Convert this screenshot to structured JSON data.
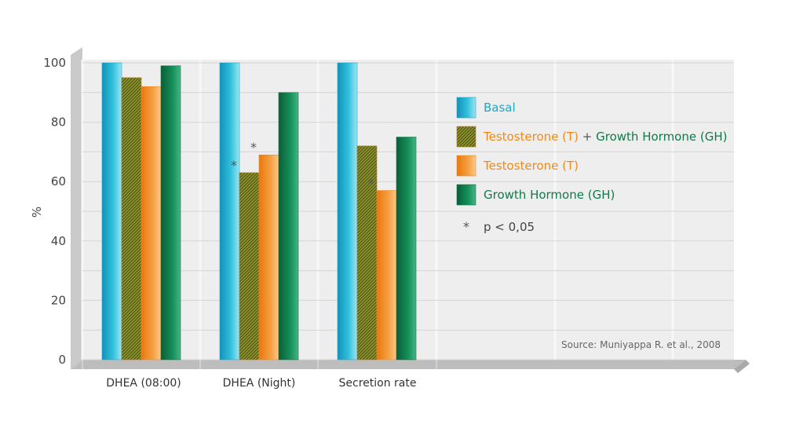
{
  "chart_data": {
    "type": "bar",
    "ylabel": "%",
    "ylim": [
      0,
      100
    ],
    "yticks": [
      0,
      20,
      40,
      60,
      80,
      100
    ],
    "grid": true,
    "legend_position": "right",
    "categories": [
      "DHEA (08:00)",
      "DHEA (Night)",
      "Secretion rate"
    ],
    "series": [
      {
        "name": "Basal",
        "values": [
          100,
          100,
          100
        ],
        "significant": [
          false,
          false,
          false
        ]
      },
      {
        "name": "Testosterone (T) + Growth Hormone (GH)",
        "values": [
          95,
          63,
          72
        ],
        "significant": [
          false,
          true,
          false
        ]
      },
      {
        "name": "Testosterone (T)",
        "values": [
          92,
          69,
          57
        ],
        "significant": [
          false,
          true,
          true
        ]
      },
      {
        "name": "Growth Hormone (GH)",
        "values": [
          99,
          90,
          75
        ],
        "significant": [
          false,
          false,
          false
        ]
      }
    ],
    "legend": [
      {
        "parts": [
          {
            "text": "Basal",
            "color": "#1da8c8"
          }
        ]
      },
      {
        "parts": [
          {
            "text": "Testosterone (T)",
            "color": "#ef8a1a"
          },
          {
            "text": " + ",
            "color": "#555555"
          },
          {
            "text": "Growth Hormone (GH)",
            "color": "#0f7a4a"
          }
        ]
      },
      {
        "parts": [
          {
            "text": "Testosterone (T)",
            "color": "#ef8a1a"
          }
        ]
      },
      {
        "parts": [
          {
            "text": "Growth Hormone (GH)",
            "color": "#0f7a4a"
          }
        ]
      }
    ],
    "significance_marker": "*",
    "significance_label": "p < 0,05",
    "source": "Source: Muniyappa R. et al., 2008",
    "colors": {
      "basal": "#1da8c8",
      "combo": "#8a8a28",
      "testosterone": "#f08a1c",
      "gh": "#0f7a4a",
      "panel": "#eeeeee",
      "grid": "#d4d4d4"
    }
  }
}
